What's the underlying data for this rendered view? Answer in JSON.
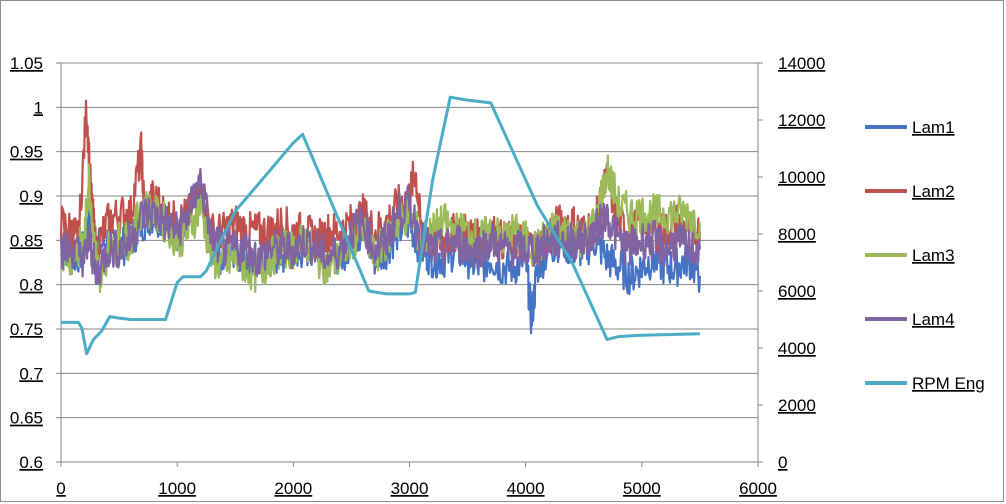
{
  "chart_data": {
    "type": "line",
    "title": "",
    "xlabel": "",
    "ylabel": "",
    "y2label": "",
    "xlim": [
      0,
      6000
    ],
    "ylim": [
      0.6,
      1.05
    ],
    "y2lim": [
      0,
      14000
    ],
    "grid": true,
    "legend_placement": "right",
    "x_ticks": [
      "0",
      "1000",
      "2000",
      "3000",
      "4000",
      "5000",
      "6000"
    ],
    "y_ticks": [
      "0.6",
      "0.65",
      "0.7",
      "0.75",
      "0.8",
      "0.85",
      "0.9",
      "0.95",
      "1",
      "1.05"
    ],
    "y2_ticks": [
      "0",
      "2000",
      "4000",
      "6000",
      "8000",
      "10000",
      "12000",
      "14000"
    ],
    "series": [
      {
        "name": "Lam1",
        "axis": "left",
        "color": "#4472c4",
        "points": [
          [
            0,
            0.85
          ],
          [
            100,
            0.83
          ],
          [
            200,
            0.84
          ],
          [
            250,
            0.88
          ],
          [
            300,
            0.84
          ],
          [
            400,
            0.85
          ],
          [
            500,
            0.84
          ],
          [
            600,
            0.85
          ],
          [
            700,
            0.87
          ],
          [
            800,
            0.88
          ],
          [
            900,
            0.87
          ],
          [
            1000,
            0.86
          ],
          [
            1100,
            0.88
          ],
          [
            1200,
            0.9
          ],
          [
            1300,
            0.84
          ],
          [
            1400,
            0.83
          ],
          [
            1500,
            0.84
          ],
          [
            1600,
            0.83
          ],
          [
            1700,
            0.82
          ],
          [
            1800,
            0.83
          ],
          [
            1900,
            0.83
          ],
          [
            2000,
            0.84
          ],
          [
            2100,
            0.84
          ],
          [
            2200,
            0.85
          ],
          [
            2300,
            0.84
          ],
          [
            2400,
            0.83
          ],
          [
            2500,
            0.85
          ],
          [
            2600,
            0.86
          ],
          [
            2700,
            0.83
          ],
          [
            2800,
            0.84
          ],
          [
            2900,
            0.86
          ],
          [
            3000,
            0.87
          ],
          [
            3100,
            0.84
          ],
          [
            3200,
            0.83
          ],
          [
            3300,
            0.83
          ],
          [
            3400,
            0.84
          ],
          [
            3500,
            0.83
          ],
          [
            3600,
            0.82
          ],
          [
            3700,
            0.83
          ],
          [
            3800,
            0.82
          ],
          [
            3900,
            0.82
          ],
          [
            4000,
            0.83
          ],
          [
            4050,
            0.76
          ],
          [
            4100,
            0.82
          ],
          [
            4200,
            0.84
          ],
          [
            4300,
            0.85
          ],
          [
            4400,
            0.84
          ],
          [
            4500,
            0.84
          ],
          [
            4600,
            0.85
          ],
          [
            4700,
            0.83
          ],
          [
            4800,
            0.82
          ],
          [
            4900,
            0.81
          ],
          [
            5000,
            0.82
          ],
          [
            5100,
            0.83
          ],
          [
            5200,
            0.82
          ],
          [
            5300,
            0.82
          ],
          [
            5400,
            0.83
          ],
          [
            5500,
            0.81
          ]
        ]
      },
      {
        "name": "Lam2",
        "axis": "left",
        "color": "#c0504d",
        "points": [
          [
            0,
            0.87
          ],
          [
            100,
            0.86
          ],
          [
            150,
            0.85
          ],
          [
            220,
            1.0
          ],
          [
            260,
            0.9
          ],
          [
            300,
            0.84
          ],
          [
            400,
            0.87
          ],
          [
            500,
            0.88
          ],
          [
            600,
            0.88
          ],
          [
            690,
            0.95
          ],
          [
            720,
            0.88
          ],
          [
            800,
            0.9
          ],
          [
            900,
            0.88
          ],
          [
            1000,
            0.87
          ],
          [
            1100,
            0.88
          ],
          [
            1200,
            0.91
          ],
          [
            1300,
            0.86
          ],
          [
            1400,
            0.86
          ],
          [
            1500,
            0.87
          ],
          [
            1600,
            0.86
          ],
          [
            1700,
            0.86
          ],
          [
            1800,
            0.86
          ],
          [
            1900,
            0.87
          ],
          [
            2000,
            0.86
          ],
          [
            2100,
            0.86
          ],
          [
            2200,
            0.85
          ],
          [
            2300,
            0.86
          ],
          [
            2400,
            0.86
          ],
          [
            2500,
            0.87
          ],
          [
            2600,
            0.88
          ],
          [
            2700,
            0.86
          ],
          [
            2800,
            0.87
          ],
          [
            2900,
            0.89
          ],
          [
            3000,
            0.9
          ],
          [
            3050,
            0.93
          ],
          [
            3100,
            0.86
          ],
          [
            3200,
            0.85
          ],
          [
            3300,
            0.85
          ],
          [
            3400,
            0.86
          ],
          [
            3500,
            0.86
          ],
          [
            3600,
            0.85
          ],
          [
            3700,
            0.86
          ],
          [
            3800,
            0.85
          ],
          [
            3900,
            0.85
          ],
          [
            4000,
            0.85
          ],
          [
            4100,
            0.84
          ],
          [
            4200,
            0.86
          ],
          [
            4300,
            0.87
          ],
          [
            4400,
            0.87
          ],
          [
            4500,
            0.86
          ],
          [
            4600,
            0.87
          ],
          [
            4700,
            0.92
          ],
          [
            4800,
            0.87
          ],
          [
            4900,
            0.86
          ],
          [
            5000,
            0.87
          ],
          [
            5100,
            0.86
          ],
          [
            5200,
            0.86
          ],
          [
            5300,
            0.87
          ],
          [
            5400,
            0.86
          ],
          [
            5500,
            0.86
          ]
        ]
      },
      {
        "name": "Lam3",
        "axis": "left",
        "color": "#9bbb59",
        "points": [
          [
            0,
            0.84
          ],
          [
            100,
            0.83
          ],
          [
            200,
            0.85
          ],
          [
            240,
            0.92
          ],
          [
            300,
            0.83
          ],
          [
            350,
            0.8
          ],
          [
            400,
            0.84
          ],
          [
            500,
            0.85
          ],
          [
            600,
            0.85
          ],
          [
            700,
            0.89
          ],
          [
            800,
            0.88
          ],
          [
            900,
            0.87
          ],
          [
            1000,
            0.85
          ],
          [
            1100,
            0.86
          ],
          [
            1200,
            0.89
          ],
          [
            1300,
            0.83
          ],
          [
            1400,
            0.82
          ],
          [
            1500,
            0.83
          ],
          [
            1600,
            0.82
          ],
          [
            1700,
            0.81
          ],
          [
            1800,
            0.83
          ],
          [
            1900,
            0.84
          ],
          [
            2000,
            0.84
          ],
          [
            2100,
            0.85
          ],
          [
            2200,
            0.83
          ],
          [
            2300,
            0.82
          ],
          [
            2400,
            0.83
          ],
          [
            2500,
            0.85
          ],
          [
            2600,
            0.86
          ],
          [
            2700,
            0.83
          ],
          [
            2800,
            0.85
          ],
          [
            2900,
            0.87
          ],
          [
            3000,
            0.88
          ],
          [
            3100,
            0.85
          ],
          [
            3200,
            0.86
          ],
          [
            3300,
            0.87
          ],
          [
            3400,
            0.86
          ],
          [
            3500,
            0.86
          ],
          [
            3600,
            0.85
          ],
          [
            3700,
            0.86
          ],
          [
            3800,
            0.85
          ],
          [
            3900,
            0.86
          ],
          [
            4000,
            0.85
          ],
          [
            4100,
            0.84
          ],
          [
            4200,
            0.86
          ],
          [
            4300,
            0.86
          ],
          [
            4400,
            0.86
          ],
          [
            4500,
            0.85
          ],
          [
            4600,
            0.87
          ],
          [
            4700,
            0.93
          ],
          [
            4800,
            0.89
          ],
          [
            4900,
            0.88
          ],
          [
            5000,
            0.88
          ],
          [
            5100,
            0.88
          ],
          [
            5200,
            0.88
          ],
          [
            5300,
            0.88
          ],
          [
            5400,
            0.88
          ],
          [
            5500,
            0.87
          ]
        ]
      },
      {
        "name": "Lam4",
        "axis": "left",
        "color": "#8064a2",
        "points": [
          [
            0,
            0.84
          ],
          [
            100,
            0.84
          ],
          [
            200,
            0.83
          ],
          [
            250,
            0.85
          ],
          [
            300,
            0.81
          ],
          [
            400,
            0.84
          ],
          [
            500,
            0.84
          ],
          [
            600,
            0.85
          ],
          [
            700,
            0.88
          ],
          [
            800,
            0.88
          ],
          [
            900,
            0.87
          ],
          [
            1000,
            0.86
          ],
          [
            1100,
            0.88
          ],
          [
            1200,
            0.92
          ],
          [
            1300,
            0.85
          ],
          [
            1400,
            0.84
          ],
          [
            1500,
            0.84
          ],
          [
            1600,
            0.84
          ],
          [
            1700,
            0.83
          ],
          [
            1800,
            0.84
          ],
          [
            1900,
            0.84
          ],
          [
            2000,
            0.84
          ],
          [
            2100,
            0.85
          ],
          [
            2200,
            0.84
          ],
          [
            2300,
            0.83
          ],
          [
            2400,
            0.84
          ],
          [
            2500,
            0.86
          ],
          [
            2600,
            0.87
          ],
          [
            2700,
            0.84
          ],
          [
            2800,
            0.85
          ],
          [
            2900,
            0.88
          ],
          [
            3000,
            0.89
          ],
          [
            3100,
            0.85
          ],
          [
            3200,
            0.84
          ],
          [
            3300,
            0.84
          ],
          [
            3400,
            0.85
          ],
          [
            3500,
            0.84
          ],
          [
            3600,
            0.84
          ],
          [
            3700,
            0.85
          ],
          [
            3800,
            0.84
          ],
          [
            3900,
            0.84
          ],
          [
            4000,
            0.84
          ],
          [
            4100,
            0.84
          ],
          [
            4200,
            0.85
          ],
          [
            4300,
            0.85
          ],
          [
            4400,
            0.85
          ],
          [
            4500,
            0.85
          ],
          [
            4600,
            0.86
          ],
          [
            4700,
            0.88
          ],
          [
            4800,
            0.85
          ],
          [
            4900,
            0.84
          ],
          [
            5000,
            0.85
          ],
          [
            5100,
            0.85
          ],
          [
            5200,
            0.84
          ],
          [
            5300,
            0.85
          ],
          [
            5400,
            0.84
          ],
          [
            5500,
            0.84
          ]
        ]
      },
      {
        "name": "RPM Eng",
        "axis": "right",
        "color": "#4bacc6",
        "points": [
          [
            0,
            4900
          ],
          [
            150,
            4900
          ],
          [
            180,
            4700
          ],
          [
            220,
            3800
          ],
          [
            280,
            4300
          ],
          [
            350,
            4600
          ],
          [
            420,
            5100
          ],
          [
            500,
            5050
          ],
          [
            600,
            5000
          ],
          [
            700,
            5000
          ],
          [
            900,
            5000
          ],
          [
            1000,
            6300
          ],
          [
            1050,
            6500
          ],
          [
            1200,
            6500
          ],
          [
            1250,
            6700
          ],
          [
            1500,
            8800
          ],
          [
            2000,
            11200
          ],
          [
            2080,
            11500
          ],
          [
            2650,
            6000
          ],
          [
            2800,
            5900
          ],
          [
            3000,
            5900
          ],
          [
            3050,
            5950
          ],
          [
            3200,
            9900
          ],
          [
            3350,
            12800
          ],
          [
            3500,
            12700
          ],
          [
            3700,
            12600
          ],
          [
            4100,
            9000
          ],
          [
            4400,
            7000
          ],
          [
            4700,
            4300
          ],
          [
            4800,
            4400
          ],
          [
            5000,
            4450
          ],
          [
            5500,
            4500
          ]
        ]
      }
    ]
  }
}
